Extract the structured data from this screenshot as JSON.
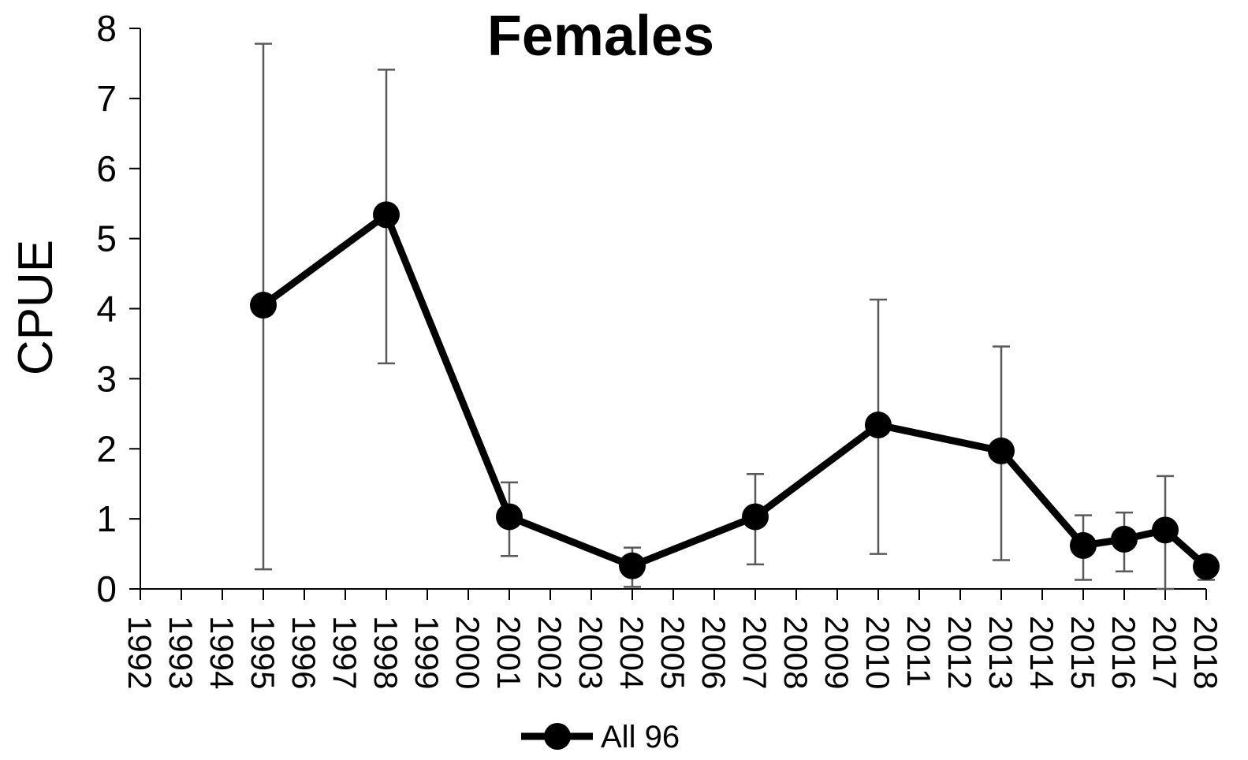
{
  "chart_data": {
    "type": "line",
    "title": "Females",
    "xlabel": "",
    "ylabel": "CPUE",
    "ylim": [
      0,
      8
    ],
    "yticks": [
      "0",
      "1",
      "2",
      "3",
      "4",
      "5",
      "6",
      "7",
      "8"
    ],
    "categories": [
      "1992",
      "1993",
      "1994",
      "1995",
      "1996",
      "1997",
      "1998",
      "1999",
      "2000",
      "2001",
      "2002",
      "2003",
      "2004",
      "2005",
      "2006",
      "2007",
      "2008",
      "2009",
      "2010",
      "2011",
      "2012",
      "2013",
      "2014",
      "2015",
      "2016",
      "2017",
      "2018"
    ],
    "grid": false,
    "legend_position": "bottom",
    "series": [
      {
        "name": "All 96",
        "color": "#000000",
        "points": [
          {
            "x": "1995",
            "y": 4.05,
            "err_low": 0.28,
            "err_high": 7.78
          },
          {
            "x": "1998",
            "y": 5.34,
            "err_low": 3.22,
            "err_high": 7.41
          },
          {
            "x": "2001",
            "y": 1.03,
            "err_low": 0.47,
            "err_high": 1.52
          },
          {
            "x": "2004",
            "y": 0.33,
            "err_low": 0.03,
            "err_high": 0.59
          },
          {
            "x": "2007",
            "y": 1.03,
            "err_low": 0.35,
            "err_high": 1.64
          },
          {
            "x": "2010",
            "y": 2.34,
            "err_low": 0.5,
            "err_high": 4.13
          },
          {
            "x": "2013",
            "y": 1.97,
            "err_low": 0.41,
            "err_high": 3.46
          },
          {
            "x": "2015",
            "y": 0.62,
            "err_low": 0.13,
            "err_high": 1.05
          },
          {
            "x": "2016",
            "y": 0.71,
            "err_low": 0.25,
            "err_high": 1.09
          },
          {
            "x": "2017",
            "y": 0.84,
            "err_low": 0.0,
            "err_high": 1.61
          },
          {
            "x": "2018",
            "y": 0.32,
            "err_low": 0.13,
            "err_high": 0.35
          }
        ]
      }
    ],
    "errorbar_color": "#595959"
  }
}
